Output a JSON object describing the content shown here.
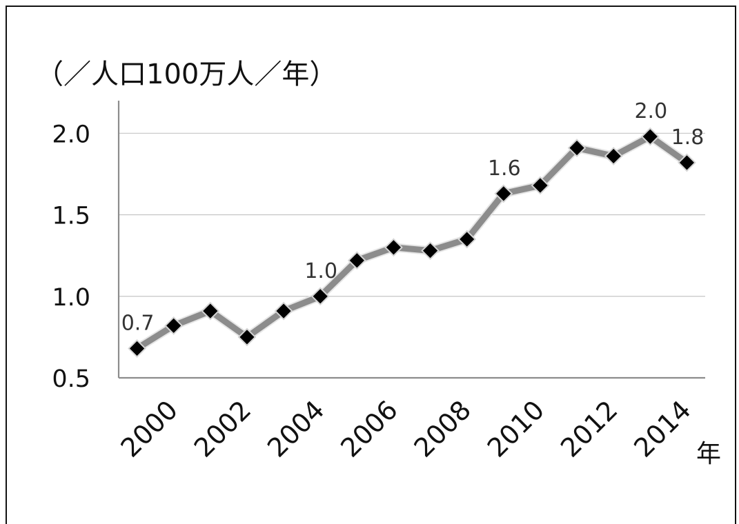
{
  "chart_data": {
    "type": "line",
    "ylabel": "（／人口100万人／年）",
    "xlabel": "年",
    "x": [
      1999,
      2000,
      2001,
      2002,
      2003,
      2004,
      2005,
      2006,
      2007,
      2008,
      2009,
      2010,
      2011,
      2012,
      2013,
      2014
    ],
    "series": [
      {
        "values": [
          0.68,
          0.82,
          0.91,
          0.75,
          0.91,
          1.0,
          1.22,
          1.3,
          1.28,
          1.35,
          1.63,
          1.68,
          1.91,
          1.86,
          1.98,
          1.82
        ]
      }
    ],
    "ylim": [
      0.5,
      2.2
    ],
    "y_ticks": [
      {
        "value": 0.5,
        "label": "0.5"
      },
      {
        "value": 1.0,
        "label": "1.0"
      },
      {
        "value": 1.5,
        "label": "1.5"
      },
      {
        "value": 2.0,
        "label": "2.0"
      }
    ],
    "x_ticks": [
      {
        "value": 2000,
        "label": "2000"
      },
      {
        "value": 2002,
        "label": "2002"
      },
      {
        "value": 2004,
        "label": "2004"
      },
      {
        "value": 2006,
        "label": "2006"
      },
      {
        "value": 2008,
        "label": "2008"
      },
      {
        "value": 2010,
        "label": "2010"
      },
      {
        "value": 2012,
        "label": "2012"
      },
      {
        "value": 2014,
        "label": "2014"
      }
    ],
    "data_labels": [
      {
        "x": 1999,
        "text": "0.7"
      },
      {
        "x": 2004,
        "text": "1.0"
      },
      {
        "x": 2009,
        "text": "1.6"
      },
      {
        "x": 2013,
        "text": "2.0"
      },
      {
        "x": 2014,
        "text": "1.8"
      }
    ],
    "grid": true,
    "legend": "none",
    "colors": {
      "line": "#8c8c8c",
      "line_halo": "#e6e6e6",
      "marker": "#000000",
      "marker_edge": "#d4d4d4",
      "grid": "#c4c4c4",
      "axis": "#8c8c8c"
    }
  }
}
